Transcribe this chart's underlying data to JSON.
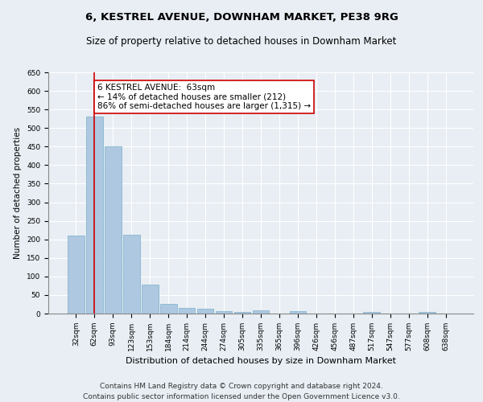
{
  "title": "6, KESTREL AVENUE, DOWNHAM MARKET, PE38 9RG",
  "subtitle": "Size of property relative to detached houses in Downham Market",
  "xlabel": "Distribution of detached houses by size in Downham Market",
  "ylabel": "Number of detached properties",
  "categories": [
    "32sqm",
    "62sqm",
    "93sqm",
    "123sqm",
    "153sqm",
    "184sqm",
    "214sqm",
    "244sqm",
    "274sqm",
    "305sqm",
    "335sqm",
    "365sqm",
    "396sqm",
    "426sqm",
    "456sqm",
    "487sqm",
    "517sqm",
    "547sqm",
    "577sqm",
    "608sqm",
    "638sqm"
  ],
  "values": [
    210,
    530,
    450,
    212,
    78,
    27,
    15,
    12,
    7,
    4,
    9,
    0,
    6,
    0,
    0,
    0,
    5,
    0,
    0,
    5,
    0
  ],
  "bar_color": "#adc8e0",
  "bar_edgecolor": "#7aaec8",
  "vline_x": 1.0,
  "vline_color": "#cc0000",
  "annotation_text": "6 KESTREL AVENUE:  63sqm\n← 14% of detached houses are smaller (212)\n86% of semi-detached houses are larger (1,315) →",
  "annotation_box_color": "#ffffff",
  "annotation_box_edgecolor": "#cc0000",
  "ylim": [
    0,
    650
  ],
  "yticks": [
    0,
    50,
    100,
    150,
    200,
    250,
    300,
    350,
    400,
    450,
    500,
    550,
    600,
    650
  ],
  "footer_line1": "Contains HM Land Registry data © Crown copyright and database right 2024.",
  "footer_line2": "Contains public sector information licensed under the Open Government Licence v3.0.",
  "bg_color": "#e8eef4",
  "plot_bg_color": "#e8eef4",
  "title_fontsize": 9.5,
  "subtitle_fontsize": 8.5,
  "footer_fontsize": 6.5,
  "ylabel_fontsize": 7.5,
  "xlabel_fontsize": 8.0,
  "tick_fontsize": 6.5,
  "annot_fontsize": 7.5
}
